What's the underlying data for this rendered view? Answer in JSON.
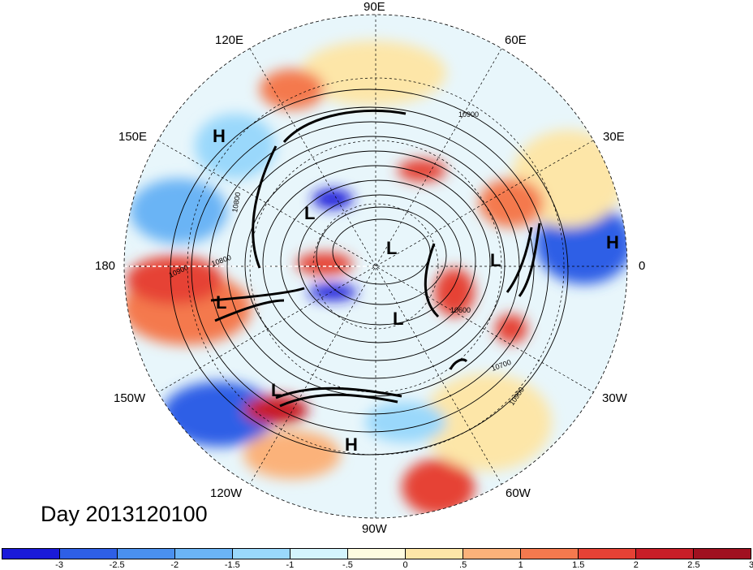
{
  "title": "Day 2013120100",
  "longitude_labels": {
    "n90e": "90E",
    "n120e": "120E",
    "n60e": "60E",
    "n150e": "150E",
    "n30e": "30E",
    "n180": "180",
    "n0": "0",
    "n150w": "150W",
    "n30w": "30W",
    "n120w": "120W",
    "n60w": "60W",
    "n90w": "90W"
  },
  "pressure_centers": [
    {
      "type": "H",
      "label": "H"
    },
    {
      "type": "L",
      "label": "L"
    },
    {
      "type": "L",
      "label": "L"
    },
    {
      "type": "L",
      "label": "L"
    },
    {
      "type": "H",
      "label": "H"
    },
    {
      "type": "L",
      "label": "L"
    },
    {
      "type": "L",
      "label": "L"
    },
    {
      "type": "L",
      "label": "L"
    },
    {
      "type": "H",
      "label": "H"
    }
  ],
  "contour_labels": [
    "10900",
    "10800",
    "10900",
    "10800",
    "10700",
    "10900",
    "10600"
  ],
  "colorbar": {
    "colors": [
      "#1a1ad9",
      "#2e5fe6",
      "#4a90ee",
      "#6bb4f5",
      "#9ad8fb",
      "#d4f4fd",
      "#fdfbe0",
      "#fde6a8",
      "#fbb27a",
      "#f4794e",
      "#e64235",
      "#c81e28",
      "#a01020"
    ],
    "ticks": [
      "-3",
      "-2.5",
      "-2",
      "-1.5",
      "-1",
      "-.5",
      "0",
      ".5",
      "1",
      "1.5",
      "2",
      "2.5",
      "3"
    ]
  },
  "colors": {
    "ocean_pale": "#e8f6fb",
    "neg_strong": "#1a1ad9",
    "pos_strong": "#c81e28"
  }
}
